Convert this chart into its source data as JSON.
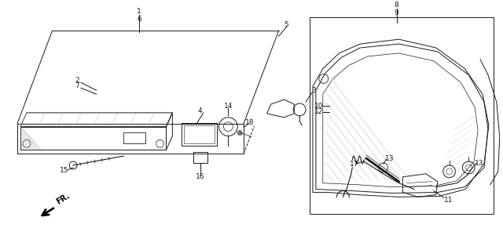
{
  "bg_color": "#ffffff",
  "line_color": "#1a1a1a",
  "fig_width": 6.4,
  "fig_height": 3.14,
  "dpi": 100,
  "label_fs": 6.5,
  "lw": 0.7
}
